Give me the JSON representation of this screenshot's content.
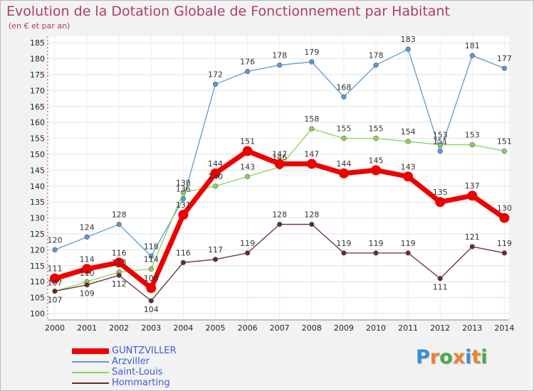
{
  "chart_data": {
    "type": "line",
    "title": "Evolution de la Dotation Globale de Fonctionnement par Habitant",
    "subtitle": "(en € et par an)",
    "x": [
      "2000",
      "2001",
      "2002",
      "2003",
      "2004",
      "2005",
      "2006",
      "2007",
      "2008",
      "2009",
      "2010",
      "2011",
      "2012",
      "2013",
      "2014"
    ],
    "ylim": [
      100,
      185
    ],
    "yticks": [
      100,
      105,
      110,
      115,
      120,
      125,
      130,
      135,
      140,
      145,
      150,
      155,
      160,
      165,
      170,
      175,
      180,
      185
    ],
    "grid": true,
    "legend_position": "bottom-left",
    "series": [
      {
        "name": "GUNTZVILLER",
        "color": "#ee0000",
        "values": [
          111,
          114,
          116,
          108,
          131,
          144,
          151,
          147,
          147,
          144,
          145,
          143,
          135,
          137,
          130
        ]
      },
      {
        "name": "Arzviller",
        "color": "#5b9bd5",
        "values": [
          120,
          124,
          128,
          118,
          136,
          172,
          176,
          178,
          179,
          168,
          178,
          183,
          151,
          181,
          177
        ]
      },
      {
        "name": "Saint-Louis",
        "color": "#8fd45a",
        "values": [
          107,
          110,
          113,
          114,
          138,
          140,
          143,
          146,
          158,
          155,
          155,
          154,
          153,
          153,
          151
        ]
      },
      {
        "name": "Hommarting",
        "color": "#6b2a2a",
        "values": [
          107,
          109,
          112,
          104,
          116,
          117,
          119,
          128,
          128,
          119,
          119,
          119,
          111,
          121,
          119
        ]
      }
    ]
  },
  "brand": {
    "letters": [
      "P",
      "r",
      "o",
      "x",
      "i",
      "t",
      "i"
    ],
    "colors": [
      "#3a8fd6",
      "#e8842c",
      "#4aa84a",
      "#e8842c",
      "#3a8fd6",
      "#e8842c",
      "#4aa84a"
    ]
  }
}
